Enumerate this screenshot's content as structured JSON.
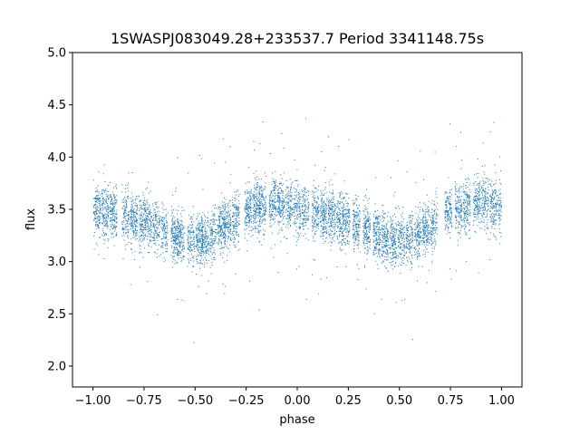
{
  "chart_data": {
    "type": "scatter",
    "title": "1SWASPJ083049.28+233537.7 Period 3341148.75s",
    "xlabel": "phase",
    "ylabel": "flux",
    "xlim": [
      -1.1,
      1.1
    ],
    "ylim": [
      1.8,
      5.0
    ],
    "x_ticks": [
      -1.0,
      -0.75,
      -0.5,
      -0.25,
      0.0,
      0.25,
      0.5,
      0.75,
      1.0
    ],
    "x_tick_labels": [
      "−1.00",
      "−0.75",
      "−0.50",
      "−0.25",
      "0.00",
      "0.25",
      "0.50",
      "0.75",
      "1.00"
    ],
    "y_ticks": [
      2.0,
      2.5,
      3.0,
      3.5,
      4.0,
      4.5,
      5.0
    ],
    "y_tick_labels": [
      "2.0",
      "2.5",
      "3.0",
      "3.5",
      "4.0",
      "4.5",
      "5.0"
    ],
    "grid": false,
    "marker_color": "#1f77b4",
    "series": [
      {
        "phase_clusters": [
          -0.98,
          -0.94,
          -0.9,
          -0.84,
          -0.8,
          -0.76,
          -0.73,
          -0.69,
          -0.65,
          -0.6,
          -0.57,
          -0.52,
          -0.48,
          -0.45,
          -0.41,
          -0.37,
          -0.34,
          -0.3,
          -0.24,
          -0.2,
          -0.17,
          -0.12,
          -0.08,
          -0.04,
          0.0,
          0.04,
          0.09,
          0.13,
          0.17,
          0.21,
          0.24,
          0.29,
          0.34,
          0.39,
          0.43,
          0.47,
          0.51,
          0.55,
          0.59,
          0.63,
          0.67,
          0.74,
          0.79,
          0.83,
          0.88,
          0.92,
          0.96,
          1.0
        ],
        "profile_phase": [
          -1.0,
          -0.75,
          -0.55,
          -0.45,
          -0.25,
          -0.1,
          0.0,
          0.25,
          0.45,
          0.55,
          0.75,
          0.9,
          1.0
        ],
        "profile_flux": [
          3.5,
          3.4,
          3.2,
          3.22,
          3.48,
          3.58,
          3.5,
          3.4,
          3.2,
          3.22,
          3.48,
          3.58,
          3.5
        ]
      }
    ]
  }
}
